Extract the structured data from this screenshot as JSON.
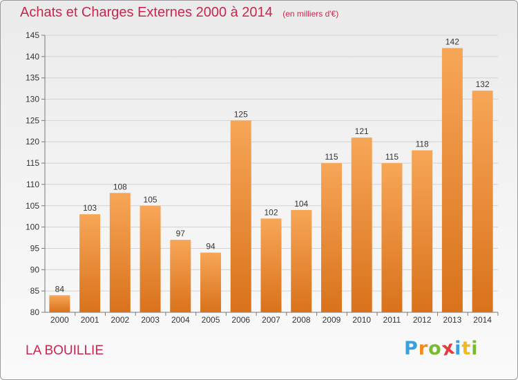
{
  "title": "Achats et Charges Externes 2000 à 2014",
  "unit": "(en milliers d'€)",
  "commune": "LA BOUILLIE",
  "logo": {
    "letters": [
      "P",
      "r",
      "o",
      "x",
      "i",
      "t",
      "i"
    ],
    "colors": [
      "#3aa0dd",
      "#f28c1e",
      "#77bb33",
      "#e23d3d",
      "#3aa0dd",
      "#f2b81e",
      "#77bb33"
    ]
  },
  "colors": {
    "bar_light": "#f7a658",
    "bar_dark": "#d9721b",
    "title": "#c8264d"
  },
  "chart_data": {
    "type": "bar",
    "categories": [
      "2000",
      "2001",
      "2002",
      "2003",
      "2004",
      "2005",
      "2006",
      "2007",
      "2008",
      "2009",
      "2010",
      "2011",
      "2012",
      "2013",
      "2014"
    ],
    "values": [
      84,
      103,
      108,
      105,
      97,
      94,
      125,
      102,
      104,
      115,
      121,
      115,
      118,
      142,
      132
    ],
    "ylim": [
      80,
      145
    ],
    "yticks": [
      80,
      85,
      90,
      95,
      100,
      105,
      110,
      115,
      120,
      125,
      130,
      135,
      140,
      145
    ],
    "grid": true,
    "xlabel": "",
    "ylabel": ""
  }
}
